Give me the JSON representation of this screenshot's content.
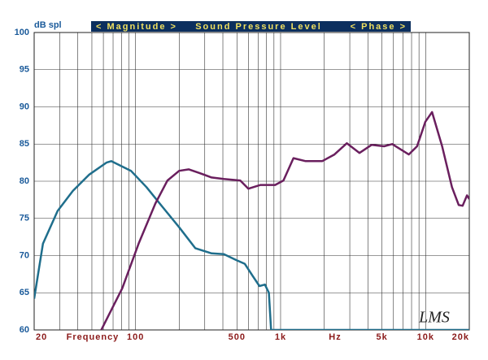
{
  "chart_data": {
    "type": "line",
    "title_left": "< Magnitude >",
    "title": "Sound Pressure Level",
    "title_right": "< Phase >",
    "ylabel": "dB spl",
    "xlabel": "Frequency",
    "xunit": "Hz",
    "logo": "LMS",
    "xscale": "log",
    "xlim": [
      20,
      20000
    ],
    "ylim": [
      60,
      100
    ],
    "xticks": [
      20,
      100,
      500,
      {
        "value": 1000,
        "label": "1k"
      },
      {
        "value": 5000,
        "label": "5k"
      },
      {
        "value": 10000,
        "label": "10k"
      },
      {
        "value": 20000,
        "label": "20k"
      }
    ],
    "xgrid": [
      20,
      30,
      40,
      50,
      60,
      70,
      80,
      90,
      100,
      200,
      300,
      400,
      500,
      600,
      700,
      800,
      900,
      1000,
      2000,
      3000,
      4000,
      5000,
      6000,
      7000,
      8000,
      9000,
      10000,
      20000
    ],
    "yticks": [
      60,
      65,
      70,
      75,
      80,
      85,
      90,
      95,
      100
    ],
    "grid": true,
    "series": [
      {
        "color": "#1f6e8c",
        "x": [
          20,
          23,
          29,
          37,
          48,
          63,
          68,
          93,
          119,
          154,
          200,
          258,
          334,
          406,
          494,
          566,
          645,
          715,
          780,
          830,
          860,
          1000,
          20000
        ],
        "values": [
          64.2,
          71.6,
          76,
          78.7,
          80.9,
          82.5,
          82.7,
          81.4,
          79.2,
          76.5,
          73.8,
          71,
          70.3,
          70.2,
          69.4,
          68.9,
          67.2,
          65.9,
          66.1,
          65,
          60,
          60,
          60
        ]
      },
      {
        "color": "#6a1f5e",
        "x": [
          58,
          81,
          105,
          137,
          166,
          200,
          233,
          276,
          334,
          406,
          527,
          600,
          727,
          917,
          1046,
          1226,
          1489,
          1934,
          2350,
          2860,
          3500,
          4250,
          5170,
          5880,
          7650,
          8730,
          9960,
          11070,
          13000,
          15200,
          16900,
          18000,
          19300,
          20000
        ],
        "values": [
          60,
          65.6,
          71.6,
          77,
          80.1,
          81.4,
          81.6,
          81.1,
          80.5,
          80.3,
          80.1,
          79,
          79.5,
          79.5,
          80.1,
          83.1,
          82.7,
          82.7,
          83.6,
          85.1,
          83.8,
          84.9,
          84.7,
          85,
          83.6,
          84.7,
          88,
          89.3,
          84.7,
          79.2,
          76.8,
          76.7,
          78.1,
          77.6
        ]
      }
    ]
  }
}
